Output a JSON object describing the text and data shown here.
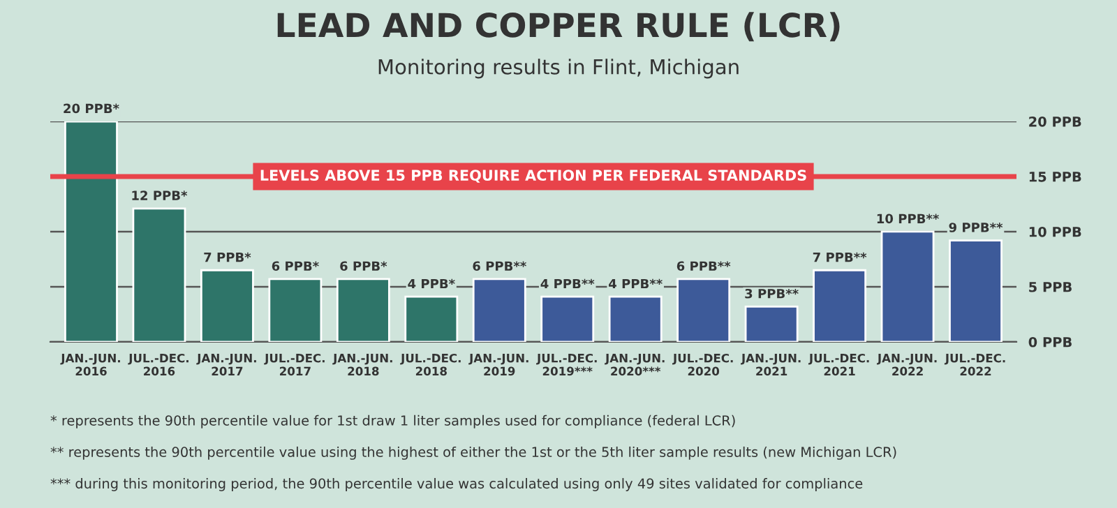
{
  "chart_data": {
    "type": "bar",
    "title": "LEAD AND COPPER RULE (LCR)",
    "subtitle": "Monitoring results in Flint, Michigan",
    "categories": [
      "JAN.-JUN.\n2016",
      "JUL.-DEC.\n2016",
      "JAN.-JUN.\n2017",
      "JUL.-DEC.\n2017",
      "JAN.-JUN.\n2018",
      "JUL.-DEC.\n2018",
      "JAN.-JUN.\n2019",
      "JUL.-DEC.\n2019***",
      "JAN.-JUN.\n2020***",
      "JUL.-DEC.\n2020",
      "JAN.-JUN.\n2021",
      "JUL.-DEC.\n2021",
      "JAN.-JUN.\n2022",
      "JUL.-DEC.\n2022"
    ],
    "values": [
      20,
      12.1,
      6.5,
      5.7,
      5.7,
      4.1,
      5.7,
      4.1,
      4.1,
      5.7,
      3.2,
      6.5,
      10,
      9.2
    ],
    "value_labels": [
      "20 PPB*",
      "12 PPB*",
      "7 PPB*",
      "6 PPB*",
      "6 PPB*",
      "4 PPB*",
      "6 PPB**",
      "4 PPB**",
      "4 PPB**",
      "6 PPB**",
      "3 PPB**",
      "7 PPB**",
      "10 PPB**",
      "9 PPB**"
    ],
    "colors": [
      "#2e7569",
      "#2e7569",
      "#2e7569",
      "#2e7569",
      "#2e7569",
      "#2e7569",
      "#3d5a99",
      "#3d5a99",
      "#3d5a99",
      "#3d5a99",
      "#3d5a99",
      "#3d5a99",
      "#3d5a99",
      "#3d5a99"
    ],
    "ylim": [
      0,
      20
    ],
    "yticks": [
      {
        "value": 0,
        "label": "0 PPB"
      },
      {
        "value": 5,
        "label": "5 PPB"
      },
      {
        "value": 10,
        "label": "10 PPB"
      },
      {
        "value": 15,
        "label": "15 PPB"
      },
      {
        "value": 20,
        "label": "20 PPB"
      }
    ],
    "grid": "y",
    "ref_lines": [
      {
        "axis": "y",
        "value": 15,
        "label": "LEVELS ABOVE 15 PPB REQUIRE ACTION PER FEDERAL STANDARDS",
        "color": "#e8434a"
      }
    ],
    "annotations": [
      "* represents the 90th percentile value for 1st draw 1 liter samples used for compliance (federal LCR)",
      "** represents the 90th percentile value using the highest of either the 1st or the 5th liter sample results (new Michigan LCR)",
      "*** during this monitoring period, the 90th percentile value was calculated using only 49 sites validated for compliance"
    ]
  }
}
